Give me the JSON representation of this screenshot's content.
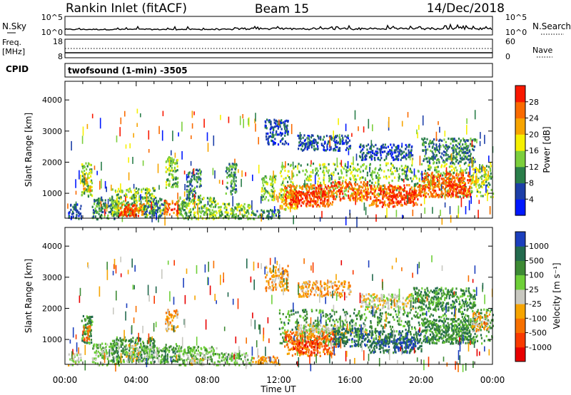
{
  "header": {
    "station": "Rankin Inlet (fitACF)",
    "beam": "Beam 15",
    "date": "14/Dec/2018"
  },
  "nsky_panel": {
    "left_label": "N.Sky",
    "right_label": "N.Search",
    "left_ticks": [
      "10^5",
      "10^0"
    ],
    "right_ticks": [
      "10^5",
      "10^0"
    ]
  },
  "freq_panel": {
    "left_label_1": "Freq.",
    "left_label_2": "[MHz]",
    "right_label": "Nave",
    "left_ticks": [
      "18",
      "8"
    ],
    "right_ticks": [
      "60",
      "0"
    ]
  },
  "cpid_panel": {
    "label": "CPID",
    "text": "twofsound (1-min) -3505"
  },
  "chart_data": [
    {
      "type": "heatmap",
      "name": "Power",
      "ylabel": "Slant Range [km]",
      "y_ticks": [
        "1000",
        "2000",
        "3000",
        "4000"
      ],
      "ylim": [
        200,
        4600
      ],
      "xlim": [
        0,
        24
      ],
      "colorbar": {
        "label": "Power [dB]",
        "ticks": [
          "4",
          "8",
          "12",
          "16",
          "20",
          "24",
          "28"
        ],
        "colors": [
          "#0018ff",
          "#1d3fa8",
          "#2a7e4a",
          "#7ccf3c",
          "#f6f000",
          "#f7a400",
          "#fa6a00",
          "#f91800"
        ]
      },
      "regions": [
        {
          "t0": 0.15,
          "t1": 0.9,
          "r0": 200,
          "r1": 700,
          "level": 1
        },
        {
          "t0": 0.9,
          "t1": 1.5,
          "r0": 900,
          "r1": 2000,
          "level": 3
        },
        {
          "t0": 1.0,
          "t1": 1.4,
          "r0": 1100,
          "r1": 1600,
          "level": 5
        },
        {
          "t0": 1.5,
          "t1": 3.0,
          "r0": 200,
          "r1": 900,
          "level": 2
        },
        {
          "t0": 2.6,
          "t1": 5.0,
          "r0": 300,
          "r1": 1200,
          "level": 3
        },
        {
          "t0": 3.0,
          "t1": 4.4,
          "r0": 300,
          "r1": 700,
          "level": 6
        },
        {
          "t0": 3.3,
          "t1": 4.0,
          "r0": 300,
          "r1": 550,
          "level": 7
        },
        {
          "t0": 4.4,
          "t1": 5.6,
          "r0": 250,
          "r1": 900,
          "level": 2
        },
        {
          "t0": 5.5,
          "t1": 6.4,
          "r0": 300,
          "r1": 800,
          "level": 6
        },
        {
          "t0": 5.6,
          "t1": 6.3,
          "r0": 1200,
          "r1": 2200,
          "level": 3
        },
        {
          "t0": 6.3,
          "t1": 8.5,
          "r0": 200,
          "r1": 900,
          "level": 3
        },
        {
          "t0": 6.8,
          "t1": 7.6,
          "r0": 800,
          "r1": 1800,
          "level": 2
        },
        {
          "t0": 8.5,
          "t1": 10.5,
          "r0": 200,
          "r1": 700,
          "level": 3
        },
        {
          "t0": 9.0,
          "t1": 9.6,
          "r0": 1000,
          "r1": 2000,
          "level": 2
        },
        {
          "t0": 10.5,
          "t1": 12.0,
          "r0": 200,
          "r1": 500,
          "level": 2
        },
        {
          "t0": 11.0,
          "t1": 11.8,
          "r0": 800,
          "r1": 1600,
          "level": 3
        },
        {
          "t0": 11.2,
          "t1": 12.5,
          "r0": 2600,
          "r1": 3400,
          "level": 1
        },
        {
          "t0": 12.0,
          "t1": 13.0,
          "r0": 500,
          "r1": 1200,
          "level": 4
        },
        {
          "t0": 12.0,
          "t1": 24.0,
          "r0": 900,
          "r1": 2000,
          "level": 3
        },
        {
          "t0": 12.3,
          "t1": 15.0,
          "r0": 600,
          "r1": 1300,
          "level": 6
        },
        {
          "t0": 12.6,
          "t1": 14.6,
          "r0": 700,
          "r1": 1100,
          "level": 7
        },
        {
          "t0": 15.0,
          "t1": 17.0,
          "r0": 800,
          "r1": 1400,
          "level": 6
        },
        {
          "t0": 17.0,
          "t1": 20.0,
          "r0": 600,
          "r1": 1300,
          "level": 6
        },
        {
          "t0": 17.8,
          "t1": 19.6,
          "r0": 700,
          "r1": 1100,
          "level": 7
        },
        {
          "t0": 20.0,
          "t1": 22.8,
          "r0": 900,
          "r1": 1700,
          "level": 6
        },
        {
          "t0": 21.5,
          "t1": 22.5,
          "r0": 1000,
          "r1": 1400,
          "level": 7
        },
        {
          "t0": 22.8,
          "t1": 23.7,
          "r0": 1300,
          "r1": 1900,
          "level": 4
        },
        {
          "t0": 13.0,
          "t1": 16.0,
          "r0": 2400,
          "r1": 2900,
          "level": 1
        },
        {
          "t0": 16.5,
          "t1": 19.5,
          "r0": 2100,
          "r1": 2600,
          "level": 1
        },
        {
          "t0": 20.0,
          "t1": 23.0,
          "r0": 2000,
          "r1": 2800,
          "level": 2
        }
      ]
    },
    {
      "type": "heatmap",
      "name": "Velocity",
      "ylabel": "Slant Range [km]",
      "y_ticks": [
        "1000",
        "2000",
        "3000",
        "4000"
      ],
      "ylim": [
        200,
        4600
      ],
      "xlim": [
        0,
        24
      ],
      "colorbar": {
        "label": "Velocity [m s⁻¹]",
        "ticks": [
          "1000",
          "500",
          "100",
          "25",
          "-25",
          "-100",
          "-500",
          "-1000"
        ],
        "colors": [
          "#1c3fbd",
          "#236a4e",
          "#3d8a34",
          "#6ecf38",
          "#c8c8c0",
          "#f6a400",
          "#f77000",
          "#f93a00",
          "#e80000"
        ]
      },
      "regions": [
        {
          "t0": 0.15,
          "t1": 0.9,
          "r0": 200,
          "r1": 600,
          "level": 4
        },
        {
          "t0": 0.9,
          "t1": 1.5,
          "r0": 900,
          "r1": 1800,
          "level": 2
        },
        {
          "t0": 1.0,
          "t1": 1.4,
          "r0": 1000,
          "r1": 1500,
          "level": 6
        },
        {
          "t0": 1.5,
          "t1": 3.0,
          "r0": 200,
          "r1": 900,
          "level": 3
        },
        {
          "t0": 2.6,
          "t1": 5.0,
          "r0": 300,
          "r1": 1100,
          "level": 2
        },
        {
          "t0": 3.4,
          "t1": 4.3,
          "r0": 300,
          "r1": 900,
          "level": 4
        },
        {
          "t0": 4.4,
          "t1": 5.6,
          "r0": 250,
          "r1": 800,
          "level": 3
        },
        {
          "t0": 5.5,
          "t1": 6.4,
          "r0": 300,
          "r1": 900,
          "level": 2
        },
        {
          "t0": 5.6,
          "t1": 6.3,
          "r0": 1300,
          "r1": 2000,
          "level": 5
        },
        {
          "t0": 6.3,
          "t1": 8.5,
          "r0": 200,
          "r1": 800,
          "level": 3
        },
        {
          "t0": 7.0,
          "t1": 7.8,
          "r0": 200,
          "r1": 500,
          "level": 4
        },
        {
          "t0": 8.5,
          "t1": 10.5,
          "r0": 200,
          "r1": 600,
          "level": 3
        },
        {
          "t0": 10.5,
          "t1": 12.0,
          "r0": 200,
          "r1": 500,
          "level": 5
        },
        {
          "t0": 11.2,
          "t1": 12.5,
          "r0": 2600,
          "r1": 3400,
          "level": 5
        },
        {
          "t0": 12.0,
          "t1": 24.0,
          "r0": 900,
          "r1": 2000,
          "level": 2
        },
        {
          "t0": 12.3,
          "t1": 15.2,
          "r0": 500,
          "r1": 1300,
          "level": 6
        },
        {
          "t0": 12.8,
          "t1": 14.2,
          "r0": 600,
          "r1": 1000,
          "level": 7
        },
        {
          "t0": 13.0,
          "t1": 17.0,
          "r0": 1200,
          "r1": 1500,
          "level": 4
        },
        {
          "t0": 15.0,
          "t1": 17.0,
          "r0": 800,
          "r1": 1400,
          "level": 1
        },
        {
          "t0": 17.0,
          "t1": 20.0,
          "r0": 600,
          "r1": 1300,
          "level": 1
        },
        {
          "t0": 18.4,
          "t1": 19.6,
          "r0": 700,
          "r1": 1100,
          "level": 0
        },
        {
          "t0": 20.0,
          "t1": 23.0,
          "r0": 900,
          "r1": 1700,
          "level": 2
        },
        {
          "t0": 22.8,
          "t1": 23.8,
          "r0": 1300,
          "r1": 1900,
          "level": 5
        },
        {
          "t0": 13.0,
          "t1": 16.0,
          "r0": 2400,
          "r1": 2900,
          "level": 5
        },
        {
          "t0": 16.5,
          "t1": 19.5,
          "r0": 2000,
          "r1": 2500,
          "level": 4
        },
        {
          "t0": 19.5,
          "t1": 23.0,
          "r0": 2000,
          "r1": 2700,
          "level": 2
        }
      ]
    }
  ],
  "x_axis": {
    "label": "Time UT",
    "ticks": [
      "00:00",
      "04:00",
      "08:00",
      "12:00",
      "16:00",
      "20:00",
      "00:00"
    ]
  }
}
